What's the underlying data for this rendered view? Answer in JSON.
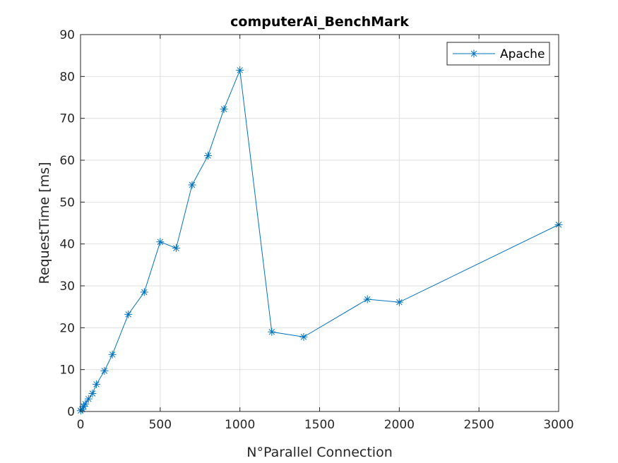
{
  "chart_data": {
    "type": "line",
    "title": "computerAi_BenchMark",
    "xlabel": "N°Parallel Connection",
    "ylabel": "RequestTime [ms]",
    "xlim": [
      0,
      3000
    ],
    "ylim": [
      0,
      90
    ],
    "xticks": [
      0,
      500,
      1000,
      1500,
      2000,
      2500,
      3000
    ],
    "yticks": [
      0,
      10,
      20,
      30,
      40,
      50,
      60,
      70,
      80,
      90
    ],
    "grid": true,
    "legend_position": "top-right",
    "series": [
      {
        "name": "Apache",
        "color": "#0072BD",
        "marker": "asterisk",
        "x": [
          1,
          10,
          20,
          30,
          50,
          75,
          100,
          150,
          200,
          300,
          400,
          500,
          600,
          700,
          800,
          900,
          1000,
          1200,
          1400,
          1800,
          2000,
          3000
        ],
        "y": [
          0.2,
          0.5,
          1.2,
          1.8,
          3.0,
          4.3,
          6.5,
          9.7,
          13.6,
          23.2,
          28.5,
          40.5,
          39.0,
          54.1,
          61.1,
          72.2,
          81.5,
          19.0,
          17.8,
          26.8,
          26.1,
          44.6
        ]
      }
    ]
  }
}
